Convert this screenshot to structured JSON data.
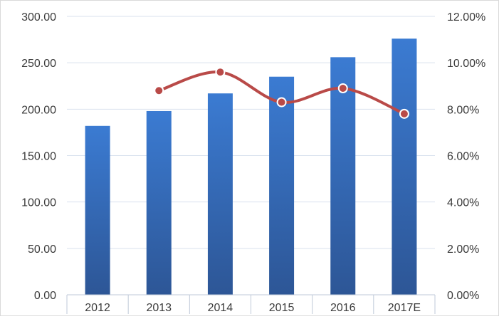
{
  "chart_data": {
    "type": "bar",
    "title": "",
    "xlabel": "",
    "ylabel": "",
    "categories": [
      "2012",
      "2013",
      "2014",
      "2015",
      "2016",
      "2017E"
    ],
    "series": [
      {
        "type": "bar",
        "axis": "left",
        "color": "#3a6fbe",
        "values": [
          182,
          198,
          217,
          235,
          256,
          276
        ]
      },
      {
        "type": "line",
        "axis": "right",
        "color": "#b94a48",
        "values": [
          null,
          8.8,
          9.6,
          8.3,
          8.9,
          7.8
        ]
      }
    ],
    "y_left": {
      "min": 0,
      "max": 300,
      "step": 50,
      "tick_labels": [
        "0.00",
        "50.00",
        "100.00",
        "150.00",
        "200.00",
        "250.00",
        "300.00"
      ]
    },
    "y_right": {
      "min": 0,
      "max": 12,
      "step": 2,
      "tick_labels": [
        "0.00%",
        "2.00%",
        "4.00%",
        "6.00%",
        "8.00%",
        "10.00%",
        "12.00%"
      ]
    },
    "grid": true,
    "legend": "none"
  }
}
